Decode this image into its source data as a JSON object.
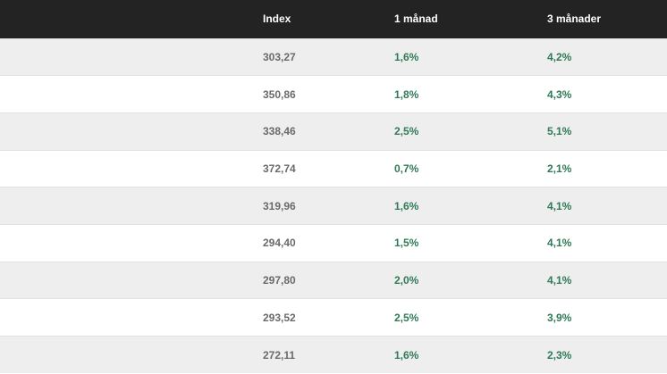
{
  "table": {
    "headers": [
      "",
      "Index",
      "1 månad",
      "3 månader"
    ],
    "rows": [
      {
        "index": "303,27",
        "m1": "1,6%",
        "m3": "4,2%"
      },
      {
        "index": "350,86",
        "m1": "1,8%",
        "m3": "4,3%"
      },
      {
        "index": "338,46",
        "m1": "2,5%",
        "m3": "5,1%"
      },
      {
        "index": "372,74",
        "m1": "0,7%",
        "m3": "2,1%"
      },
      {
        "index": "319,96",
        "m1": "1,6%",
        "m3": "4,1%"
      },
      {
        "index": "294,40",
        "m1": "1,5%",
        "m3": "4,1%"
      },
      {
        "index": "297,80",
        "m1": "2,0%",
        "m3": "4,1%"
      },
      {
        "index": "293,52",
        "m1": "2,5%",
        "m3": "3,9%"
      },
      {
        "index": "272,11",
        "m1": "1,6%",
        "m3": "2,3%"
      }
    ]
  },
  "colors": {
    "header_bg": "#232323",
    "header_text": "#ffffff",
    "row_alt_bg": "#eeeeee",
    "index_text": "#6a6a6a",
    "positive_text": "#2f7a57"
  }
}
